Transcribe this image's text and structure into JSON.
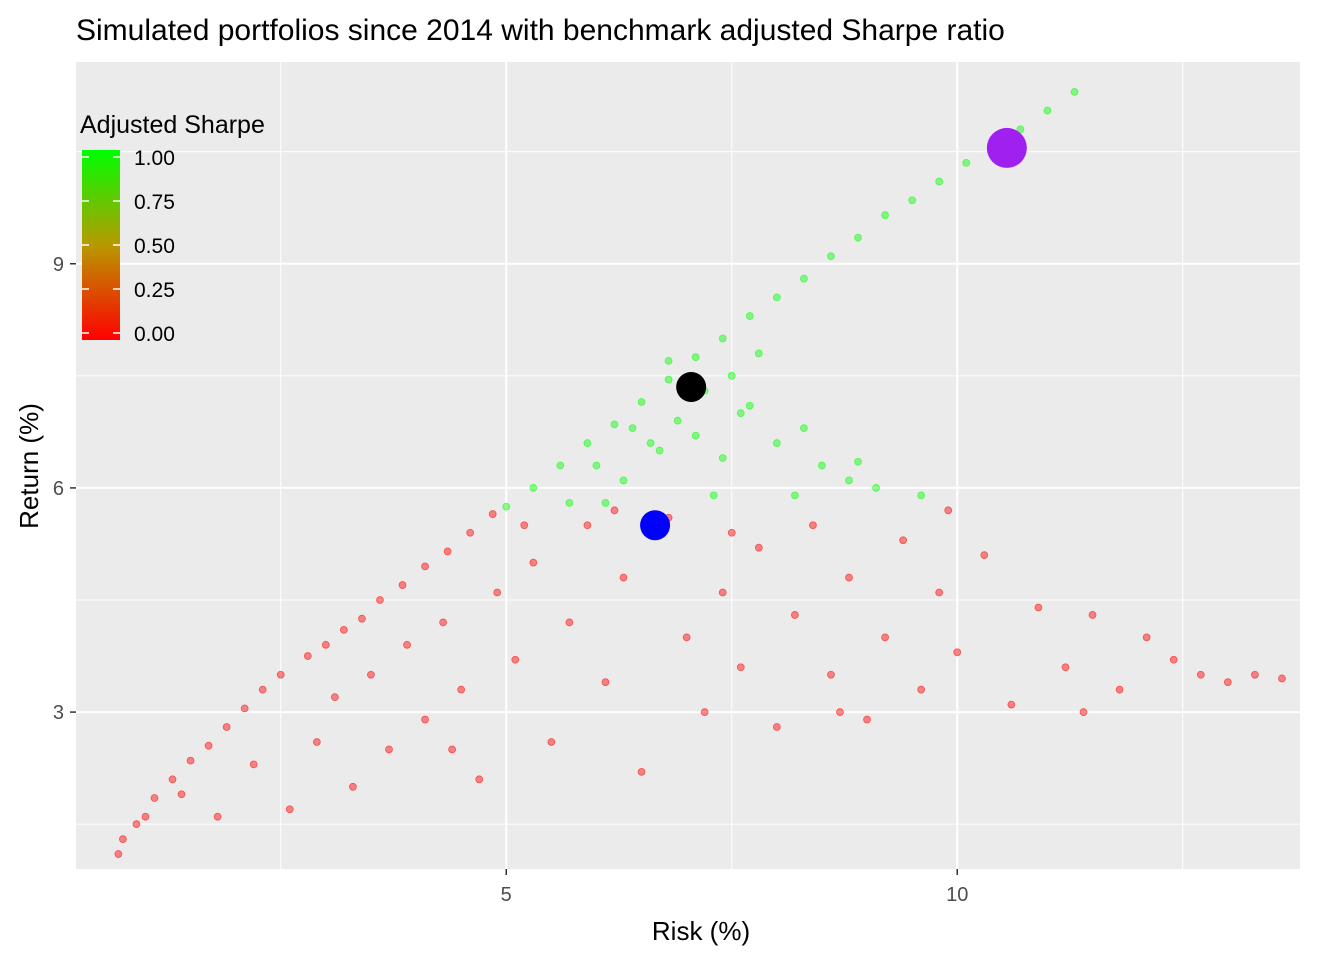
{
  "chart_data": {
    "type": "scatter",
    "title": "Simulated portfolios since 2014 with benchmark adjusted Sharpe ratio",
    "xlabel": "Risk (%)",
    "ylabel": "Return (%)",
    "xlim": [
      0.23,
      13.8
    ],
    "ylim": [
      0.9,
      11.7
    ],
    "x_ticks": [
      5,
      10
    ],
    "x_tick_labels": [
      "5",
      "10"
    ],
    "x_minor_ticks": [
      2.5,
      7.5,
      12.5
    ],
    "y_ticks": [
      3,
      6,
      9
    ],
    "y_tick_labels": [
      "3",
      "6",
      "9"
    ],
    "y_minor_ticks": [
      1.5,
      4.5,
      7.5,
      10.5
    ],
    "grid": true,
    "legend": {
      "title": "Adjusted Sharpe",
      "position": "top-left",
      "breaks": [
        1.0,
        0.75,
        0.5,
        0.25,
        0.0
      ],
      "labels": [
        "1.00",
        "0.75",
        "0.50",
        "0.25",
        "0.00"
      ],
      "low_color": "#ff0000",
      "high_color": "#00ff00"
    },
    "series": [
      {
        "marker": "point",
        "alpha": 0.45,
        "frontier": [
          [
            0.7,
            1.1,
            0
          ],
          [
            0.75,
            1.3,
            0
          ],
          [
            0.9,
            1.5,
            0
          ],
          [
            1.1,
            1.85,
            0
          ],
          [
            1.3,
            2.1,
            0
          ],
          [
            1.5,
            2.35,
            0
          ],
          [
            1.7,
            2.55,
            0
          ],
          [
            1.9,
            2.8,
            0
          ],
          [
            2.1,
            3.05,
            0
          ],
          [
            2.3,
            3.3,
            0
          ],
          [
            2.5,
            3.5,
            0
          ],
          [
            2.8,
            3.75,
            0
          ],
          [
            3.0,
            3.9,
            0
          ],
          [
            3.2,
            4.1,
            0
          ],
          [
            3.4,
            4.25,
            0
          ],
          [
            3.6,
            4.5,
            0
          ],
          [
            3.85,
            4.7,
            0
          ],
          [
            4.1,
            4.95,
            0
          ],
          [
            4.35,
            5.15,
            0
          ],
          [
            4.6,
            5.4,
            0
          ],
          [
            4.85,
            5.65,
            0
          ],
          [
            5.0,
            5.75,
            1
          ],
          [
            5.3,
            6.0,
            1
          ],
          [
            5.6,
            6.3,
            1
          ],
          [
            5.9,
            6.6,
            1
          ],
          [
            6.2,
            6.85,
            1
          ],
          [
            6.5,
            7.15,
            1
          ],
          [
            6.8,
            7.45,
            1
          ],
          [
            7.1,
            7.75,
            1
          ],
          [
            7.4,
            8.0,
            1
          ],
          [
            7.7,
            8.3,
            1
          ],
          [
            8.0,
            8.55,
            1
          ],
          [
            8.3,
            8.8,
            1
          ],
          [
            8.6,
            9.1,
            1
          ],
          [
            8.9,
            9.35,
            1
          ],
          [
            9.2,
            9.65,
            1
          ],
          [
            9.5,
            9.85,
            1
          ],
          [
            9.8,
            10.1,
            1
          ],
          [
            10.1,
            10.35,
            1
          ],
          [
            10.4,
            10.6,
            1
          ],
          [
            10.7,
            10.8,
            1
          ],
          [
            11.0,
            11.05,
            1
          ],
          [
            11.3,
            11.3,
            1
          ]
        ],
        "interior_red": [
          [
            1.0,
            1.6,
            0
          ],
          [
            1.4,
            1.9,
            0
          ],
          [
            1.8,
            1.6,
            0
          ],
          [
            2.2,
            2.3,
            0
          ],
          [
            2.6,
            1.7,
            0
          ],
          [
            2.9,
            2.6,
            0
          ],
          [
            3.1,
            3.2,
            0
          ],
          [
            3.3,
            2.0,
            0
          ],
          [
            3.5,
            3.5,
            0
          ],
          [
            3.7,
            2.5,
            0
          ],
          [
            3.9,
            3.9,
            0
          ],
          [
            4.1,
            2.9,
            0
          ],
          [
            4.3,
            4.2,
            0
          ],
          [
            4.5,
            3.3,
            0
          ],
          [
            4.7,
            2.1,
            0
          ],
          [
            4.9,
            4.6,
            0
          ],
          [
            5.1,
            3.7,
            0
          ],
          [
            5.3,
            5.0,
            0
          ],
          [
            5.5,
            2.6,
            0
          ],
          [
            5.7,
            4.2,
            0
          ],
          [
            5.9,
            5.5,
            0
          ],
          [
            6.1,
            3.4,
            0
          ],
          [
            6.3,
            4.8,
            0
          ],
          [
            6.5,
            2.2,
            0
          ],
          [
            6.8,
            5.6,
            0
          ],
          [
            7.0,
            4.0,
            0
          ],
          [
            7.2,
            3.0,
            0
          ],
          [
            7.4,
            4.6,
            0
          ],
          [
            7.6,
            3.6,
            0
          ],
          [
            7.8,
            5.2,
            0
          ],
          [
            8.0,
            2.8,
            0
          ],
          [
            8.2,
            4.3,
            0
          ],
          [
            8.4,
            5.5,
            0
          ],
          [
            8.6,
            3.5,
            0
          ],
          [
            8.8,
            4.8,
            0
          ],
          [
            9.0,
            2.9,
            0
          ],
          [
            9.2,
            4.0,
            0
          ],
          [
            9.4,
            5.3,
            0
          ],
          [
            9.6,
            3.3,
            0
          ],
          [
            9.8,
            4.6,
            0
          ],
          [
            10.0,
            3.8,
            0
          ],
          [
            10.3,
            5.1,
            0
          ],
          [
            10.6,
            3.1,
            0
          ],
          [
            10.9,
            4.4,
            0
          ],
          [
            11.2,
            3.6,
            0
          ],
          [
            11.5,
            4.3,
            0
          ],
          [
            11.8,
            3.3,
            0
          ],
          [
            12.1,
            4.0,
            0
          ],
          [
            12.4,
            3.7,
            0
          ],
          [
            12.7,
            3.5,
            0
          ],
          [
            13.0,
            3.4,
            0
          ],
          [
            13.3,
            3.5,
            0
          ],
          [
            13.6,
            3.45,
            0
          ],
          [
            6.2,
            5.7,
            0
          ],
          [
            7.5,
            5.4,
            0
          ],
          [
            9.9,
            5.7,
            0
          ],
          [
            11.4,
            3.0,
            0
          ],
          [
            8.7,
            3.0,
            0
          ],
          [
            5.2,
            5.5,
            0
          ],
          [
            4.4,
            2.5,
            0
          ]
        ],
        "interior_green": [
          [
            5.7,
            5.8,
            1
          ],
          [
            6.0,
            6.3,
            1
          ],
          [
            6.3,
            6.1,
            1
          ],
          [
            6.6,
            6.6,
            1
          ],
          [
            6.9,
            6.9,
            1
          ],
          [
            7.2,
            7.3,
            1
          ],
          [
            7.4,
            6.4,
            1
          ],
          [
            7.6,
            7.0,
            1
          ],
          [
            7.8,
            7.8,
            1
          ],
          [
            8.0,
            6.6,
            1
          ],
          [
            8.2,
            5.9,
            1
          ],
          [
            8.5,
            6.3,
            1
          ],
          [
            8.8,
            6.1,
            1
          ],
          [
            9.1,
            6.0,
            1
          ],
          [
            9.6,
            5.9,
            1
          ],
          [
            7.3,
            5.9,
            1
          ],
          [
            6.1,
            5.8,
            1
          ],
          [
            6.4,
            6.8,
            1
          ],
          [
            7.1,
            6.7,
            1
          ],
          [
            6.8,
            7.7,
            1
          ],
          [
            7.5,
            7.5,
            1
          ],
          [
            8.9,
            6.35,
            1
          ],
          [
            8.3,
            6.8,
            1
          ],
          [
            7.7,
            7.1,
            1
          ],
          [
            6.7,
            6.5,
            1
          ]
        ]
      },
      {
        "marker": "highlight",
        "points": [
          {
            "x": 10.55,
            "y": 10.55,
            "color": "#a020f0"
          },
          {
            "x": 7.05,
            "y": 7.35,
            "color": "#000000"
          },
          {
            "x": 6.65,
            "y": 5.5,
            "color": "#0000ff"
          }
        ]
      }
    ]
  }
}
